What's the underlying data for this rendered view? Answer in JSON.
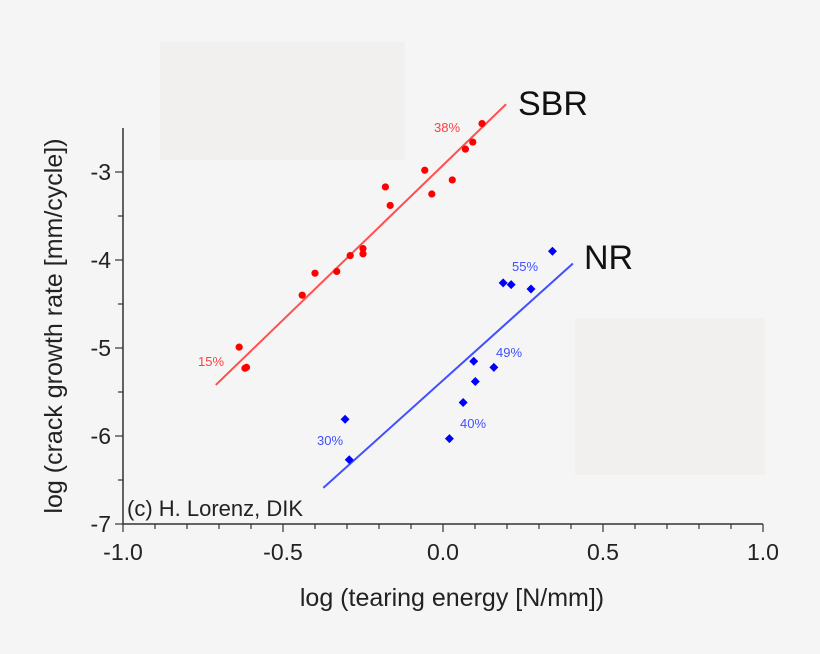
{
  "chart_data": {
    "type": "scatter",
    "xlabel": "log (tearing energy [N/mm])",
    "ylabel": "log (crack growth rate [mm/cycle])",
    "xlim": [
      -1.0,
      1.0
    ],
    "ylim": [
      -7,
      -2.5
    ],
    "xticks": [
      "-1.0",
      "-0.5",
      "0.0",
      "0.5",
      "1.0"
    ],
    "xtick_values": [
      -1.0,
      -0.5,
      0.0,
      0.5,
      1.0
    ],
    "yticks": [
      "-3",
      "-4",
      "-5",
      "-6",
      "-7"
    ],
    "ytick_values": [
      -3,
      -4,
      -5,
      -6,
      -7
    ],
    "grid": false,
    "credit": "(c) H. Lorenz, DIK",
    "series": [
      {
        "name": "SBR",
        "color": "#ff0000",
        "line_color": "#ff5050",
        "marker": "circle",
        "points": [
          [
            -0.637,
            -4.99
          ],
          [
            -0.614,
            -5.22
          ],
          [
            -0.619,
            -5.23
          ],
          [
            -0.44,
            -4.4
          ],
          [
            -0.4,
            -4.15
          ],
          [
            -0.332,
            -4.13
          ],
          [
            -0.29,
            -3.95
          ],
          [
            -0.25,
            -3.87
          ],
          [
            -0.25,
            -3.93
          ],
          [
            -0.18,
            -3.17
          ],
          [
            -0.165,
            -3.38
          ],
          [
            -0.057,
            -2.98
          ],
          [
            -0.035,
            -3.25
          ],
          [
            0.029,
            -3.09
          ],
          [
            0.07,
            -2.74
          ],
          [
            0.093,
            -2.66
          ],
          [
            0.122,
            -2.45
          ]
        ],
        "fit_line": [
          [
            -0.71,
            -5.42
          ],
          [
            0.197,
            -2.23
          ]
        ],
        "annotations": [
          "15%",
          "38%"
        ]
      },
      {
        "name": "NR",
        "color": "#0000ff",
        "line_color": "#4050ff",
        "marker": "diamond",
        "points": [
          [
            0.342,
            -3.9
          ],
          [
            0.188,
            -4.26
          ],
          [
            0.213,
            -4.28
          ],
          [
            0.275,
            -4.33
          ],
          [
            0.096,
            -5.15
          ],
          [
            0.159,
            -5.22
          ],
          [
            0.101,
            -5.38
          ],
          [
            0.063,
            -5.62
          ],
          [
            0.02,
            -6.03
          ],
          [
            -0.306,
            -5.81
          ],
          [
            -0.293,
            -6.27
          ]
        ],
        "fit_line": [
          [
            -0.374,
            -6.59
          ],
          [
            0.406,
            -4.04
          ]
        ],
        "annotations": [
          "55%",
          "49%",
          "40%",
          "30%"
        ]
      }
    ]
  }
}
